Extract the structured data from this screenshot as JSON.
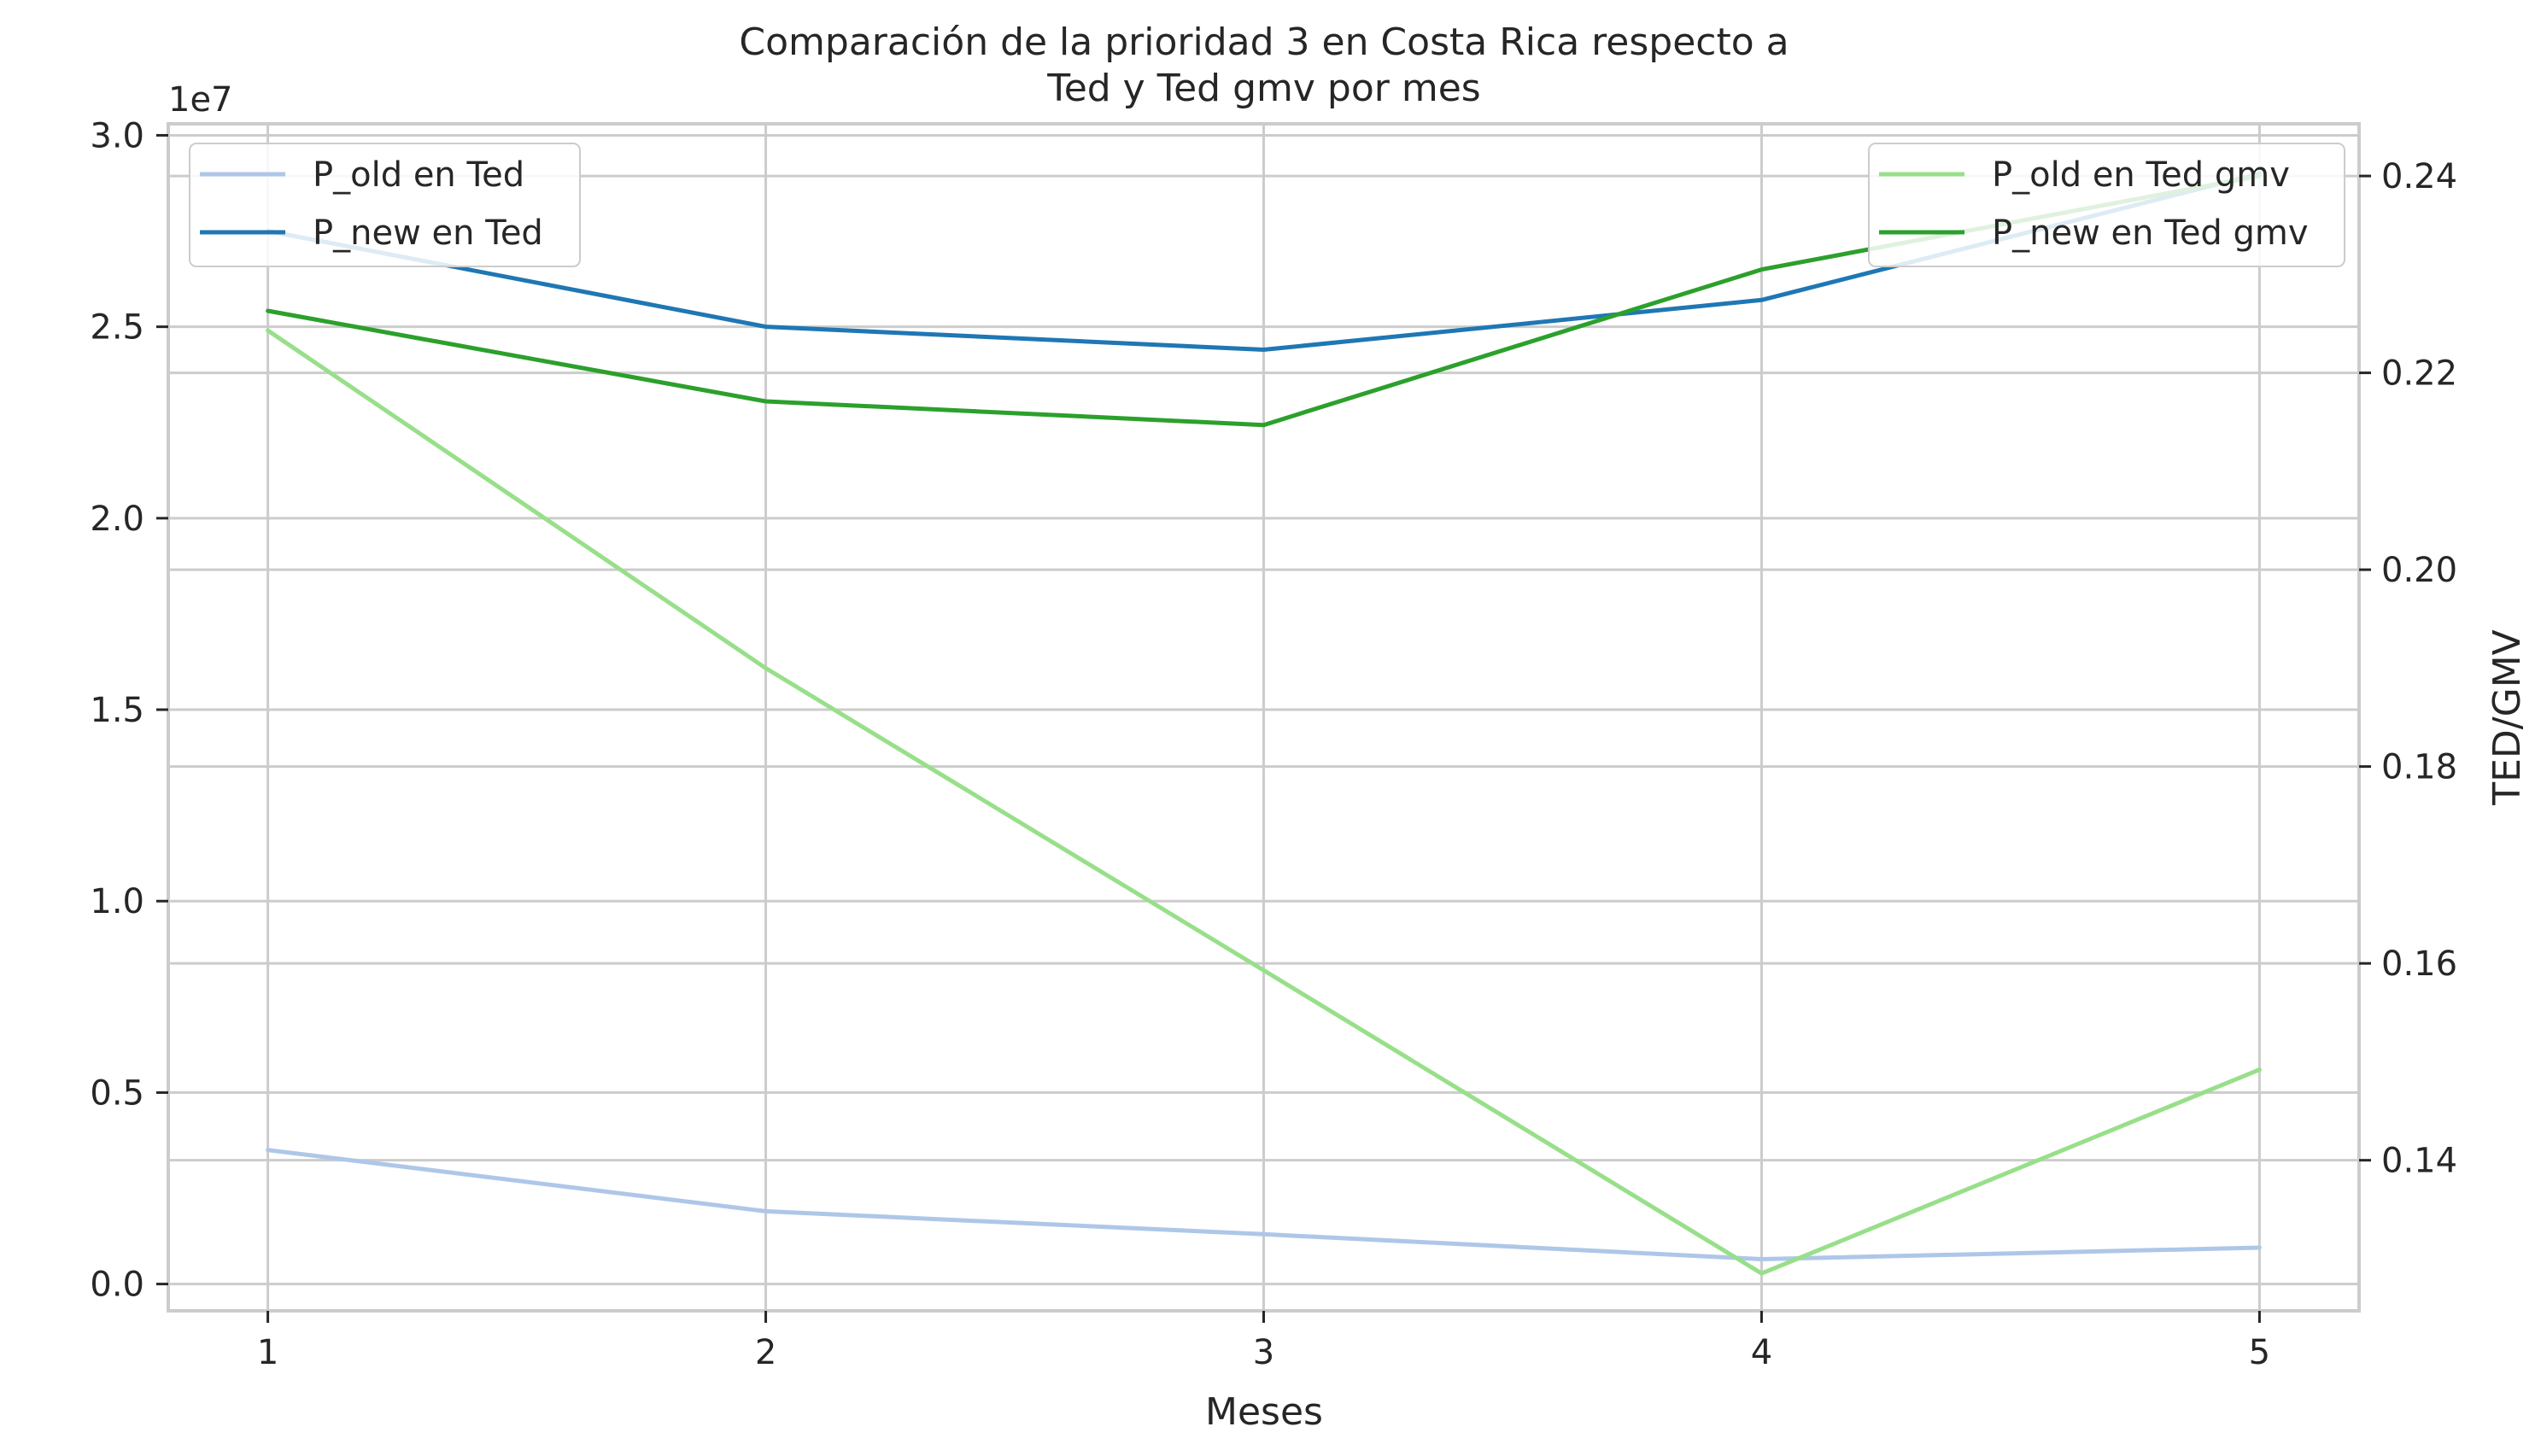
{
  "chart_data": {
    "type": "line",
    "title_lines": [
      "Comparación de la prioridad 3 en Costa Rica respecto a",
      "Ted y Ted gmv por mes"
    ],
    "xlabel": "Meses",
    "ylabel_left": "",
    "ylabel_right": "TED/GMV",
    "x": [
      1,
      2,
      3,
      4,
      5
    ],
    "x_ticks": [
      "1",
      "2",
      "3",
      "4",
      "5"
    ],
    "xlim": [
      0.8,
      5.2
    ],
    "left_axis": {
      "ylim": [
        -0.07,
        3.03
      ],
      "ticks": [
        0.0,
        0.5,
        1.0,
        1.5,
        2.0,
        2.5,
        3.0
      ],
      "tick_labels": [
        "0.0",
        "0.5",
        "1.0",
        "1.5",
        "2.0",
        "2.5",
        "3.0"
      ],
      "offset_label": "1e7"
    },
    "right_axis": {
      "ylim": [
        0.1247,
        0.2453
      ],
      "ticks": [
        0.14,
        0.16,
        0.18,
        0.2,
        0.22,
        0.24
      ],
      "tick_labels": [
        "0.14",
        "0.16",
        "0.18",
        "0.20",
        "0.22",
        "0.24"
      ]
    },
    "series": [
      {
        "name": "P_old en Ted",
        "axis": "left",
        "color": "#aec7e8",
        "values": [
          0.35,
          0.19,
          0.13,
          0.065,
          0.095
        ]
      },
      {
        "name": "P_new en Ted",
        "axis": "left",
        "color": "#1f77b4",
        "values": [
          2.75,
          2.5,
          2.44,
          2.57,
          2.9
        ]
      },
      {
        "name": "P_old en Ted gmv",
        "axis": "right",
        "color": "#98df8a",
        "values": [
          0.2243,
          0.19,
          0.1593,
          0.1285,
          0.1492
        ]
      },
      {
        "name": "P_new en Ted gmv",
        "axis": "right",
        "color": "#2ca02c",
        "values": [
          0.2263,
          0.2171,
          0.2147,
          0.2305,
          0.24
        ]
      }
    ],
    "legend_left": [
      "P_old en Ted",
      "P_new en Ted"
    ],
    "legend_right": [
      "P_old en Ted gmv",
      "P_new en Ted gmv"
    ],
    "legend_left_position": "upper-left",
    "legend_right_position": "upper-right",
    "grid": true
  }
}
